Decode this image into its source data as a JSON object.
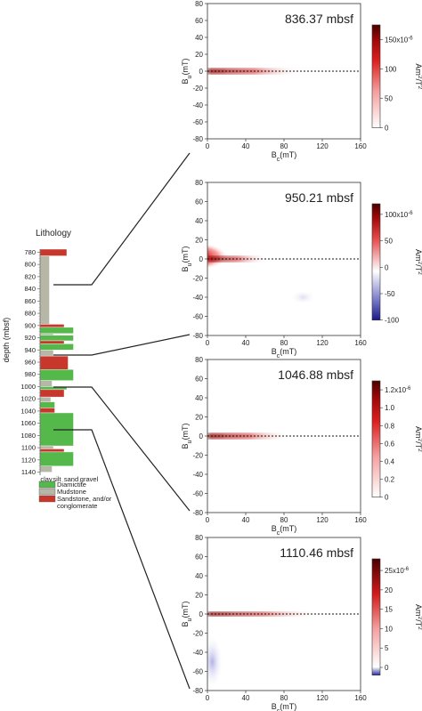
{
  "lithology": {
    "title": "Lithology",
    "ylabel": "depth (mbsf)",
    "depth_ticks": [
      "780",
      "800",
      "820",
      "840",
      "860",
      "880",
      "900",
      "920",
      "940",
      "960",
      "980",
      "1000",
      "1020",
      "1040",
      "1060",
      "1080",
      "1100",
      "1120",
      "1140"
    ],
    "grain_labels": [
      "clay",
      "silt",
      "sand",
      "gravel"
    ],
    "legend": [
      {
        "label": "Diamictite",
        "color": "#55b84b"
      },
      {
        "label": "Mudstone",
        "color": "#b7b7a7"
      },
      {
        "label": "Sandstone, and/or",
        "color": "#c8372c"
      },
      {
        "label": "conglomerate",
        "color": ""
      }
    ],
    "units": [
      {
        "type": "Sandstone",
        "top": 775,
        "bottom": 786,
        "grain": 1.0
      },
      {
        "type": "Mudstone",
        "top": 786,
        "bottom": 898,
        "grain": 0.35
      },
      {
        "type": "Sandstone",
        "top": 898,
        "bottom": 903,
        "grain": 0.9
      },
      {
        "type": "Diamictite",
        "top": 903,
        "bottom": 913,
        "grain": 1.25
      },
      {
        "type": "Mudstone",
        "top": 913,
        "bottom": 916,
        "grain": 0.5
      },
      {
        "type": "Diamictite",
        "top": 916,
        "bottom": 925,
        "grain": 1.25
      },
      {
        "type": "Sandstone",
        "top": 925,
        "bottom": 930,
        "grain": 0.9
      },
      {
        "type": "Diamictite",
        "top": 930,
        "bottom": 940,
        "grain": 1.25
      },
      {
        "type": "Mudstone",
        "top": 940,
        "bottom": 950,
        "grain": 0.5
      },
      {
        "type": "Sandstone",
        "top": 950,
        "bottom": 972,
        "grain": 1.05
      },
      {
        "type": "Diamictite",
        "top": 972,
        "bottom": 990,
        "grain": 1.25
      },
      {
        "type": "Mudstone",
        "top": 990,
        "bottom": 1000,
        "grain": 0.45
      },
      {
        "type": "Diamictite",
        "top": 1000,
        "bottom": 1005,
        "grain": 1.0
      },
      {
        "type": "Sandstone",
        "top": 1005,
        "bottom": 1017,
        "grain": 0.9
      },
      {
        "type": "Mudstone",
        "top": 1017,
        "bottom": 1025,
        "grain": 0.4
      },
      {
        "type": "Diamictite",
        "top": 1025,
        "bottom": 1035,
        "grain": 0.55
      },
      {
        "type": "Sandstone",
        "top": 1035,
        "bottom": 1043,
        "grain": 0.55
      },
      {
        "type": "Diamictite",
        "top": 1043,
        "bottom": 1097,
        "grain": 1.25
      },
      {
        "type": "Mudstone",
        "top": 1097,
        "bottom": 1102,
        "grain": 0.5
      },
      {
        "type": "Sandstone",
        "top": 1102,
        "bottom": 1107,
        "grain": 0.9
      },
      {
        "type": "Diamictite",
        "top": 1107,
        "bottom": 1130,
        "grain": 1.25
      },
      {
        "type": "Mudstone",
        "top": 1130,
        "bottom": 1140,
        "grain": 0.45
      }
    ]
  },
  "chart_data": [
    {
      "type": "heatmap",
      "title": "836.37 mbsf",
      "depth_mbsf": 836.37,
      "xlabel_main": "B",
      "xlabel_sub": "c",
      "xlabel_unit": "(mT)",
      "ylabel_main": "B",
      "ylabel_sub": "u",
      "ylabel_unit": "(mT)",
      "xlim": [
        0,
        160
      ],
      "ylim": [
        -80,
        80
      ],
      "x_ticks": [
        "0",
        "40",
        "80",
        "120",
        "160"
      ],
      "y_ticks": [
        "80",
        "60",
        "40",
        "20",
        "0",
        "-20",
        "-40",
        "-60",
        "-80"
      ],
      "colorbar": {
        "ticks": [
          "150x10",
          "100",
          "50",
          "0"
        ],
        "tick_values": [
          150,
          100,
          50,
          0
        ],
        "range": [
          0,
          175
        ],
        "exponent": "-6",
        "unit_main": "Am",
        "unit_sup": "2",
        "unit_tail": "/T",
        "unit_sup2": "2"
      }
    },
    {
      "type": "heatmap",
      "title": "950.21 mbsf",
      "depth_mbsf": 950.21,
      "xlabel_main": "B",
      "xlabel_sub": "c",
      "xlabel_unit": "(mT)",
      "ylabel_main": "B",
      "ylabel_sub": "u",
      "ylabel_unit": "(mT)",
      "xlim": [
        0,
        160
      ],
      "ylim": [
        -80,
        80
      ],
      "x_ticks": [
        "0",
        "40",
        "80",
        "120",
        "160"
      ],
      "y_ticks": [
        "80",
        "60",
        "40",
        "20",
        "0",
        "-20",
        "-40",
        "-60",
        "-80"
      ],
      "colorbar": {
        "ticks": [
          "100x10",
          "50",
          "0",
          "-50",
          "-100"
        ],
        "tick_values": [
          100,
          50,
          0,
          -50,
          -100
        ],
        "range": [
          -100,
          120
        ],
        "exponent": "-6",
        "unit_main": "Am",
        "unit_sup": "2",
        "unit_tail": "/T",
        "unit_sup2": "2"
      }
    },
    {
      "type": "heatmap",
      "title": "1046.88 mbsf",
      "depth_mbsf": 1046.88,
      "xlabel_main": "B",
      "xlabel_sub": "c",
      "xlabel_unit": "(mT)",
      "ylabel_main": "B",
      "ylabel_sub": "u",
      "ylabel_unit": "(mT)",
      "xlim": [
        0,
        160
      ],
      "ylim": [
        -80,
        80
      ],
      "x_ticks": [
        "0",
        "40",
        "80",
        "120",
        "160"
      ],
      "y_ticks": [
        "80",
        "60",
        "40",
        "20",
        "0",
        "-20",
        "-40",
        "-60",
        "-80"
      ],
      "colorbar": {
        "ticks": [
          "1.2x10",
          "1.0",
          "0.8",
          "0.6",
          "0.4",
          "0.2",
          "0"
        ],
        "tick_values": [
          1.2,
          1.0,
          0.8,
          0.6,
          0.4,
          0.2,
          0
        ],
        "range": [
          0,
          1.3
        ],
        "exponent": "-6",
        "unit_main": "Am",
        "unit_sup": "2",
        "unit_tail": "/T",
        "unit_sup2": "2"
      }
    },
    {
      "type": "heatmap",
      "title": "1110.46 mbsf",
      "depth_mbsf": 1110.46,
      "xlabel_main": "B",
      "xlabel_sub": "c",
      "xlabel_unit": "(mT)",
      "ylabel_main": "B",
      "ylabel_sub": "u",
      "ylabel_unit": "(mT)",
      "xlim": [
        0,
        160
      ],
      "ylim": [
        -80,
        80
      ],
      "x_ticks": [
        "0",
        "40",
        "80",
        "120",
        "160"
      ],
      "y_ticks": [
        "80",
        "60",
        "40",
        "20",
        "0",
        "-20",
        "-40",
        "-60",
        "-80"
      ],
      "colorbar": {
        "ticks": [
          "25x10",
          "20",
          "15",
          "10",
          "5",
          "0"
        ],
        "tick_values": [
          25,
          20,
          15,
          10,
          5,
          0
        ],
        "range": [
          -2,
          28
        ],
        "exponent": "-6",
        "unit_main": "Am",
        "unit_sup": "2",
        "unit_tail": "/T",
        "unit_sup2": "2"
      }
    }
  ]
}
